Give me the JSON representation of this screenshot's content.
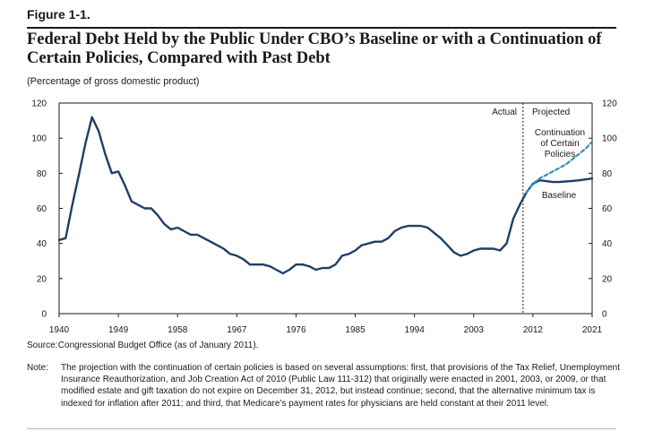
{
  "figure_label": "Figure 1-1.",
  "title": "Federal Debt Held by the Public Under CBO’s Baseline or with a Continuation of Certain Policies, Compared with Past Debt",
  "subtitle": "(Percentage of gross domestic product)",
  "source_label": "Source:",
  "source_text": "Congressional Budget Office (as of January 2011).",
  "note_label": "Note:",
  "note_text": "The projection with the continuation of certain policies is based on several assumptions: first, that provisions of the Tax Relief, Unemployment Insurance Reauthorization, and Job Creation Act of 2010 (Public Law 111-312) that originally were enacted in 2001, 2003, or 2009, or that modified estate and gift taxation do not expire on December 31, 2012, but instead continue; second, that the alternative minimum tax is indexed for inflation after 2011; and third, that Medicare’s payment rates for physicians are held constant at their 2011 level.",
  "colors": {
    "line": "#1f3f66",
    "dashed": "#2f8fc4"
  },
  "chart_data": {
    "type": "line",
    "xlim": [
      1940,
      2021
    ],
    "ylim": [
      0,
      120
    ],
    "x_ticks": [
      "1940",
      "1949",
      "1958",
      "1967",
      "1976",
      "1985",
      "1994",
      "2003",
      "2012",
      "2021"
    ],
    "y_ticks_left": [
      "0",
      "20",
      "40",
      "60",
      "80",
      "100",
      "120"
    ],
    "y_ticks_right": [
      "0",
      "20",
      "40",
      "60",
      "80",
      "100",
      "120"
    ],
    "divider_year": 2010.5,
    "annotations": {
      "actual": "Actual",
      "projected": "Projected",
      "continuation": [
        "Continuation",
        "of Certain",
        "Policies"
      ],
      "baseline": "Baseline"
    },
    "series": [
      {
        "style": "solid",
        "x": [
          1940,
          1941,
          1942,
          1943,
          1944,
          1945,
          1946,
          1947,
          1948,
          1949,
          1950,
          1951,
          1952,
          1953,
          1954,
          1955,
          1956,
          1957,
          1958,
          1959,
          1960,
          1961,
          1962,
          1963,
          1964,
          1965,
          1966,
          1967,
          1968,
          1969,
          1970,
          1971,
          1972,
          1973,
          1974,
          1975,
          1976,
          1977,
          1978,
          1979,
          1980,
          1981,
          1982,
          1983,
          1984,
          1985,
          1986,
          1987,
          1988,
          1989,
          1990,
          1991,
          1992,
          1993,
          1994,
          1995,
          1996,
          1997,
          1998,
          1999,
          2000,
          2001,
          2002,
          2003,
          2004,
          2005,
          2006,
          2007,
          2008,
          2009,
          2010
        ],
        "values": [
          42,
          43,
          62,
          79,
          97,
          112,
          104,
          91,
          80,
          81,
          73,
          64,
          62,
          60,
          60,
          56,
          51,
          48,
          49,
          47,
          45,
          45,
          43,
          41,
          39,
          37,
          34,
          33,
          31,
          28,
          28,
          28,
          27,
          25,
          23,
          25,
          28,
          28,
          27,
          25,
          26,
          26,
          28,
          33,
          34,
          36,
          39,
          40,
          41,
          41,
          43,
          47,
          49,
          50,
          50,
          50,
          49,
          46,
          43,
          39,
          35,
          33,
          34,
          36,
          37,
          37,
          37,
          36,
          40,
          54,
          62
        ]
      },
      {
        "style": "solid",
        "name": "Baseline",
        "x": [
          2010,
          2011,
          2012,
          2013,
          2014,
          2015,
          2016,
          2017,
          2018,
          2019,
          2020,
          2021
        ],
        "values": [
          62,
          69,
          74,
          76,
          75.5,
          75,
          75,
          75.3,
          75.6,
          76,
          76.5,
          77
        ]
      },
      {
        "style": "dashed",
        "name": "Continuation of Certain Policies",
        "x": [
          2011,
          2012,
          2013,
          2014,
          2015,
          2016,
          2017,
          2018,
          2019,
          2020,
          2021
        ],
        "values": [
          69,
          74,
          77,
          79,
          81,
          83,
          85,
          88,
          91,
          94,
          98
        ]
      }
    ]
  }
}
